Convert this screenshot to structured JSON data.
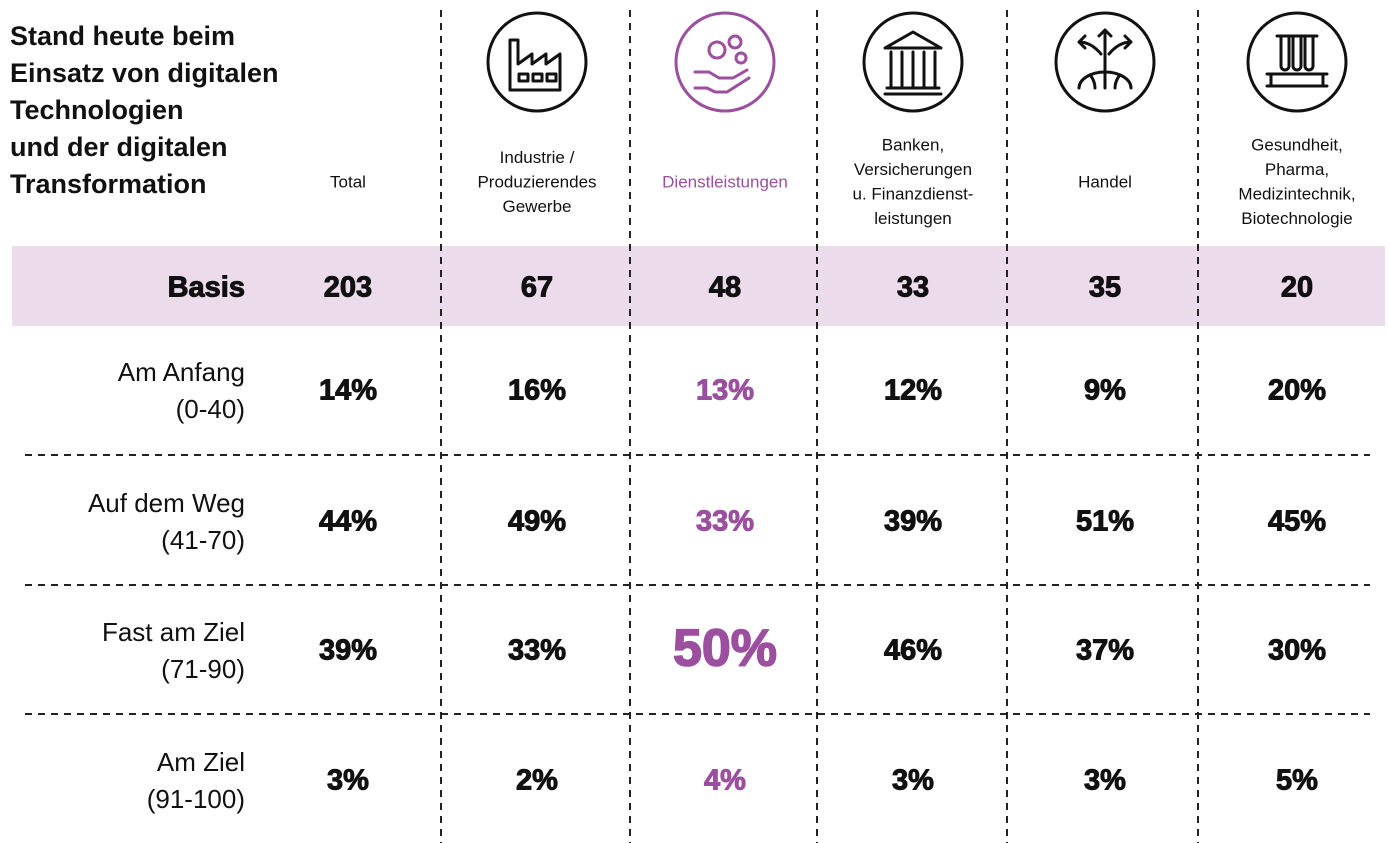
{
  "title": [
    "Stand heute beim",
    "Einsatz von digitalen",
    "Technologien",
    "und der digitalen",
    "Transformation"
  ],
  "columns": [
    {
      "lines": [
        "Total"
      ]
    },
    {
      "lines": [
        "Industrie /",
        "Produzierendes",
        "Gewerbe"
      ]
    },
    {
      "lines": [
        "Dienstleistungen"
      ]
    },
    {
      "lines": [
        "Banken,",
        "Versicherungen",
        "u. Finanzdienst-",
        "leistungen"
      ]
    },
    {
      "lines": [
        "Handel"
      ]
    },
    {
      "lines": [
        "Gesundheit,",
        "Pharma,",
        "Medizintechnik,",
        "Biotechnologie"
      ]
    }
  ],
  "basis": {
    "label": "Basis",
    "values": [
      203,
      67,
      48,
      33,
      35,
      20
    ]
  },
  "rows": [
    {
      "label": [
        "Am Anfang",
        "(0-40)"
      ],
      "values": [
        "14%",
        "16%",
        "13%",
        "12%",
        "9%",
        "20%"
      ]
    },
    {
      "label": [
        "Auf dem Weg",
        "(41-70)"
      ],
      "values": [
        "44%",
        "49%",
        "33%",
        "39%",
        "51%",
        "45%"
      ]
    },
    {
      "label": [
        "Fast am Ziel",
        "(71-90)"
      ],
      "values": [
        "39%",
        "33%",
        "50%",
        "46%",
        "37%",
        "30%"
      ]
    },
    {
      "label": [
        "Am Ziel",
        "(91-100)"
      ],
      "values": [
        "3%",
        "2%",
        "4%",
        "3%",
        "3%",
        "5%"
      ]
    }
  ],
  "highlight_column": 2,
  "highlight_color": "#9b4f9e",
  "emphasis_cell": [
    2,
    2
  ],
  "band_color": "#ebdbeb"
}
